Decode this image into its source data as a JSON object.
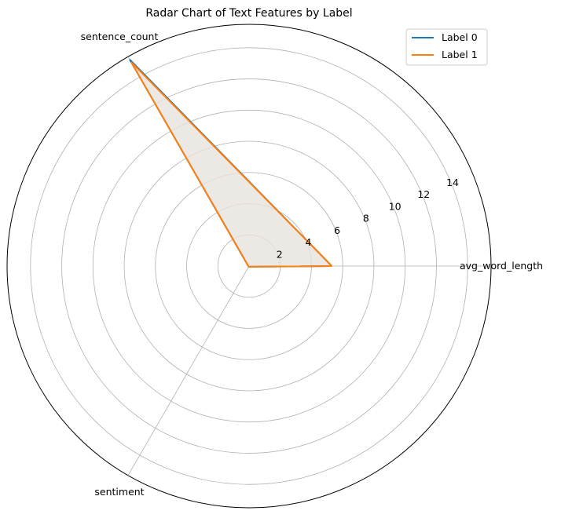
{
  "chart_data": {
    "type": "radar",
    "title": "Radar Chart of Text Features by Label",
    "axes": [
      "avg_word_length",
      "sentence_count",
      "sentiment"
    ],
    "radial_ticks": [
      2,
      4,
      6,
      8,
      10,
      12,
      14
    ],
    "rlim": [
      0,
      15.5
    ],
    "grid": true,
    "legend_position": "top-right",
    "series": [
      {
        "name": "Label 0",
        "values": [
          5.3,
          15.3,
          0.05
        ],
        "color": "#1f77b4"
      },
      {
        "name": "Label 1",
        "values": [
          5.3,
          15.1,
          0.05
        ],
        "color": "#ff7f0e"
      }
    ],
    "fill_color": "#e8e1dc"
  }
}
